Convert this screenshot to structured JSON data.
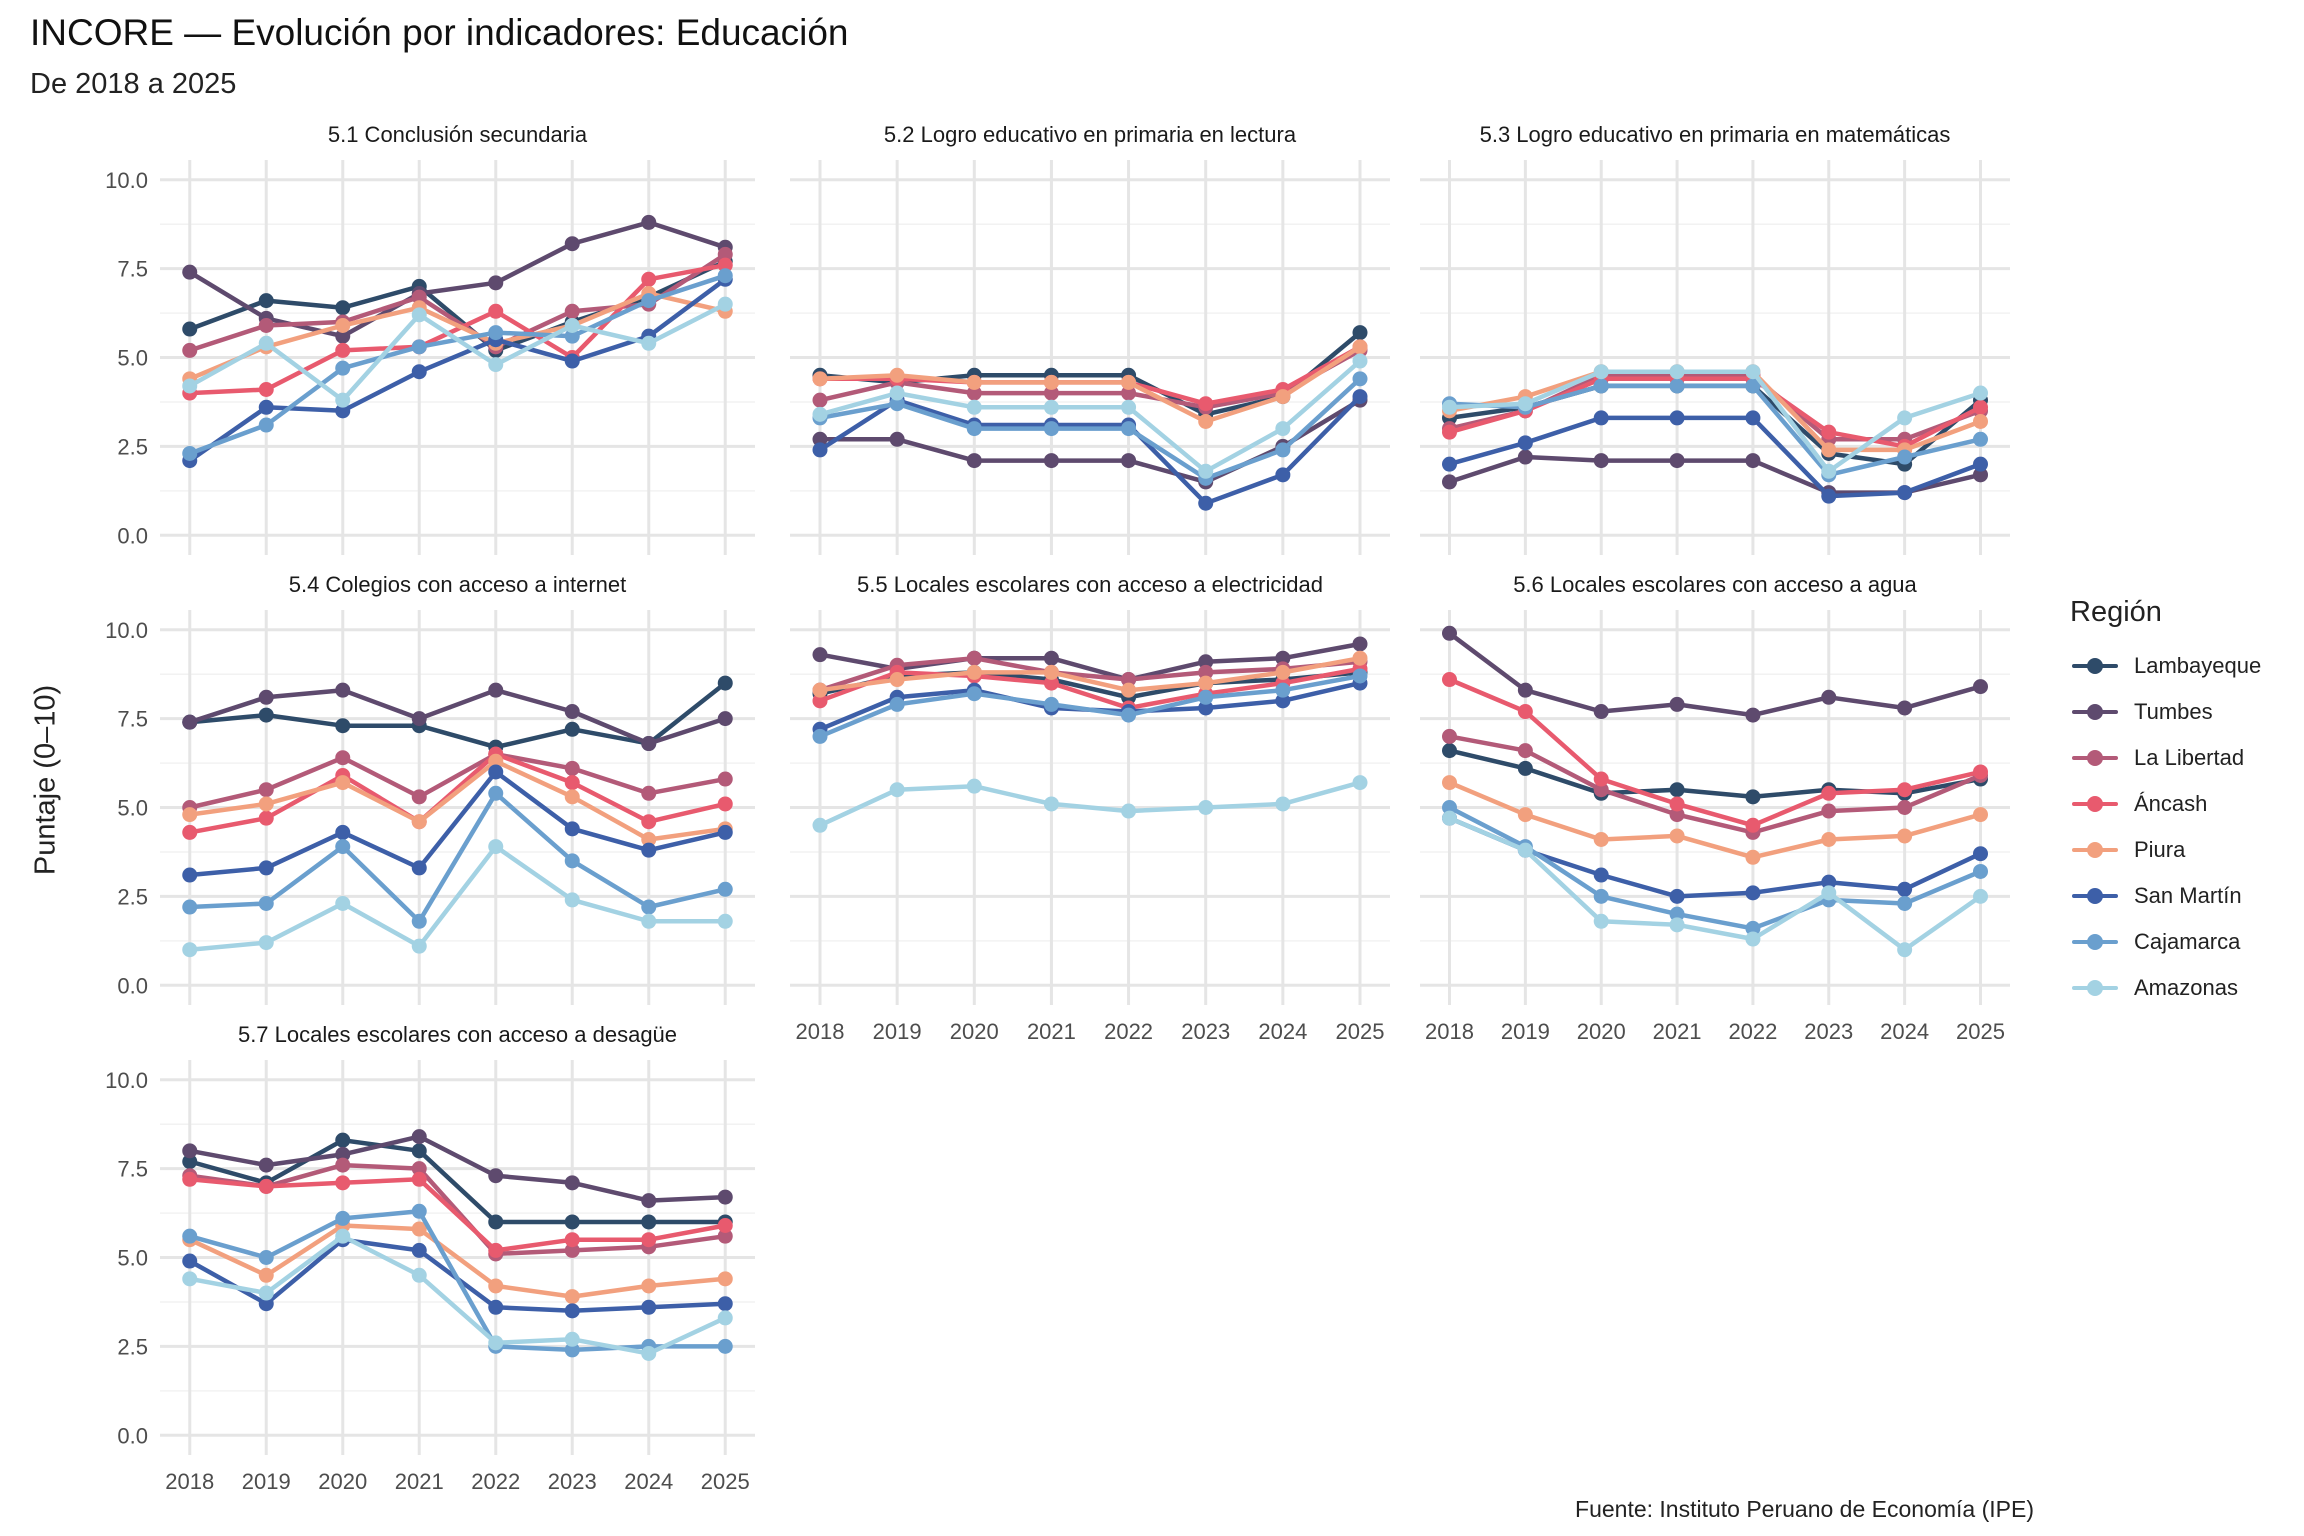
{
  "title": "INCORE — Evolución por indicadores: Educación",
  "subtitle": "De 2018 a 2025",
  "ylabel": "Puntaje (0–10)",
  "caption": "Fuente: Instituto Peruano de Economía (IPE)",
  "legend_title": "Región",
  "chart_data": {
    "type": "line",
    "layout": "facet-grid 3x3",
    "x": [
      "2018",
      "2019",
      "2020",
      "2021",
      "2022",
      "2023",
      "2024",
      "2025"
    ],
    "ylim": [
      0,
      10
    ],
    "yticks": [
      "0.0",
      "2.5",
      "5.0",
      "7.5",
      "10.0"
    ],
    "grid": true,
    "legend_position": "right",
    "series_meta": [
      {
        "name": "Lambayeque",
        "color": "#2E4B69"
      },
      {
        "name": "Tumbes",
        "color": "#5E4A6E"
      },
      {
        "name": "La Libertad",
        "color": "#B35A78"
      },
      {
        "name": "Áncash",
        "color": "#E85A6E"
      },
      {
        "name": "Piura",
        "color": "#F2A07E"
      },
      {
        "name": "San Martín",
        "color": "#3D5FA8"
      },
      {
        "name": "Cajamarca",
        "color": "#6A9FCE"
      },
      {
        "name": "Amazonas",
        "color": "#A3D2E3"
      }
    ],
    "panels": [
      {
        "title": "5.1 Conclusión secundaria",
        "series": [
          {
            "name": "Lambayeque",
            "values": [
              5.8,
              6.6,
              6.4,
              7.0,
              5.2,
              6.0,
              6.7,
              7.7
            ]
          },
          {
            "name": "Tumbes",
            "values": [
              7.4,
              6.1,
              5.6,
              6.8,
              7.1,
              8.2,
              8.8,
              8.1
            ]
          },
          {
            "name": "La Libertad",
            "values": [
              5.2,
              5.9,
              6.0,
              6.7,
              5.3,
              6.3,
              6.5,
              7.9
            ]
          },
          {
            "name": "Áncash",
            "values": [
              4.0,
              4.1,
              5.2,
              5.3,
              6.3,
              5.0,
              7.2,
              7.6
            ]
          },
          {
            "name": "Piura",
            "values": [
              4.4,
              5.3,
              5.9,
              6.4,
              5.4,
              5.9,
              6.8,
              6.3
            ]
          },
          {
            "name": "San Martín",
            "values": [
              2.1,
              3.6,
              3.5,
              4.6,
              5.5,
              4.9,
              5.6,
              7.2
            ]
          },
          {
            "name": "Cajamarca",
            "values": [
              2.3,
              3.1,
              4.7,
              5.3,
              5.7,
              5.6,
              6.6,
              7.3
            ]
          },
          {
            "name": "Amazonas",
            "values": [
              4.2,
              5.4,
              3.8,
              6.2,
              4.8,
              5.9,
              5.4,
              6.5
            ]
          }
        ]
      },
      {
        "title": "5.2 Logro educativo en primaria en lectura",
        "series": [
          {
            "name": "Lambayeque",
            "values": [
              4.5,
              4.3,
              4.5,
              4.5,
              4.5,
              3.4,
              3.9,
              5.7
            ]
          },
          {
            "name": "Tumbes",
            "values": [
              2.7,
              2.7,
              2.1,
              2.1,
              2.1,
              1.5,
              2.5,
              3.8
            ]
          },
          {
            "name": "La Libertad",
            "values": [
              3.8,
              4.3,
              4.0,
              4.0,
              4.0,
              3.6,
              4.0,
              5.2
            ]
          },
          {
            "name": "Áncash",
            "values": [
              4.4,
              4.4,
              4.3,
              4.3,
              4.3,
              3.7,
              4.1,
              5.3
            ]
          },
          {
            "name": "Piura",
            "values": [
              4.4,
              4.5,
              4.3,
              4.3,
              4.3,
              3.2,
              3.9,
              5.3
            ]
          },
          {
            "name": "San Martín",
            "values": [
              2.4,
              3.8,
              3.1,
              3.1,
              3.1,
              0.9,
              1.7,
              3.9
            ]
          },
          {
            "name": "Cajamarca",
            "values": [
              3.3,
              3.7,
              3.0,
              3.0,
              3.0,
              1.6,
              2.4,
              4.4
            ]
          },
          {
            "name": "Amazonas",
            "values": [
              3.4,
              4.0,
              3.6,
              3.6,
              3.6,
              1.8,
              3.0,
              4.9
            ]
          }
        ]
      },
      {
        "title": "5.3 Logro educativo en primaria en matemáticas",
        "series": [
          {
            "name": "Lambayeque",
            "values": [
              3.3,
              3.6,
              4.2,
              4.2,
              4.2,
              2.3,
              2.0,
              3.8
            ]
          },
          {
            "name": "Tumbes",
            "values": [
              1.5,
              2.2,
              2.1,
              2.1,
              2.1,
              1.2,
              1.2,
              1.7
            ]
          },
          {
            "name": "La Libertad",
            "values": [
              3.0,
              3.5,
              4.5,
              4.5,
              4.5,
              2.7,
              2.7,
              3.5
            ]
          },
          {
            "name": "Áncash",
            "values": [
              2.9,
              3.5,
              4.4,
              4.4,
              4.4,
              2.9,
              2.5,
              3.6
            ]
          },
          {
            "name": "Piura",
            "values": [
              3.5,
              3.9,
              4.6,
              4.6,
              4.6,
              2.4,
              2.4,
              3.2
            ]
          },
          {
            "name": "San Martín",
            "values": [
              2.0,
              2.6,
              3.3,
              3.3,
              3.3,
              1.1,
              1.2,
              2.0
            ]
          },
          {
            "name": "Cajamarca",
            "values": [
              3.7,
              3.6,
              4.2,
              4.2,
              4.2,
              1.7,
              2.2,
              2.7
            ]
          },
          {
            "name": "Amazonas",
            "values": [
              3.6,
              3.7,
              4.6,
              4.6,
              4.6,
              1.8,
              3.3,
              4.0
            ]
          }
        ]
      },
      {
        "title": "5.4 Colegios con acceso a internet",
        "series": [
          {
            "name": "Lambayeque",
            "values": [
              7.4,
              7.6,
              7.3,
              7.3,
              6.7,
              7.2,
              6.8,
              8.5
            ]
          },
          {
            "name": "Tumbes",
            "values": [
              7.4,
              8.1,
              8.3,
              7.5,
              8.3,
              7.7,
              6.8,
              7.5
            ]
          },
          {
            "name": "La Libertad",
            "values": [
              5.0,
              5.5,
              6.4,
              5.3,
              6.5,
              6.1,
              5.4,
              5.8
            ]
          },
          {
            "name": "Áncash",
            "values": [
              4.3,
              4.7,
              5.9,
              4.6,
              6.5,
              5.7,
              4.6,
              5.1
            ]
          },
          {
            "name": "Piura",
            "values": [
              4.8,
              5.1,
              5.7,
              4.6,
              6.3,
              5.3,
              4.1,
              4.4
            ]
          },
          {
            "name": "San Martín",
            "values": [
              3.1,
              3.3,
              4.3,
              3.3,
              6.0,
              4.4,
              3.8,
              4.3
            ]
          },
          {
            "name": "Cajamarca",
            "values": [
              2.2,
              2.3,
              3.9,
              1.8,
              5.4,
              3.5,
              2.2,
              2.7
            ]
          },
          {
            "name": "Amazonas",
            "values": [
              1.0,
              1.2,
              2.3,
              1.1,
              3.9,
              2.4,
              1.8,
              1.8
            ]
          }
        ]
      },
      {
        "title": "5.5 Locales escolares con acceso a electricidad",
        "series": [
          {
            "name": "Lambayeque",
            "values": [
              8.2,
              8.7,
              8.8,
              8.6,
              8.1,
              8.5,
              8.6,
              8.8
            ]
          },
          {
            "name": "Tumbes",
            "values": [
              9.3,
              8.9,
              9.2,
              9.2,
              8.6,
              9.1,
              9.2,
              9.6
            ]
          },
          {
            "name": "La Libertad",
            "values": [
              8.3,
              9.0,
              9.2,
              8.8,
              8.6,
              8.8,
              8.9,
              9.1
            ]
          },
          {
            "name": "Áncash",
            "values": [
              8.0,
              8.8,
              8.7,
              8.5,
              7.8,
              8.2,
              8.5,
              8.9
            ]
          },
          {
            "name": "Piura",
            "values": [
              8.3,
              8.6,
              8.8,
              8.8,
              8.3,
              8.5,
              8.8,
              9.2
            ]
          },
          {
            "name": "San Martín",
            "values": [
              7.2,
              8.1,
              8.3,
              7.8,
              7.7,
              7.8,
              8.0,
              8.5
            ]
          },
          {
            "name": "Cajamarca",
            "values": [
              7.0,
              7.9,
              8.2,
              7.9,
              7.6,
              8.1,
              8.3,
              8.7
            ]
          },
          {
            "name": "Amazonas",
            "values": [
              4.5,
              5.5,
              5.6,
              5.1,
              4.9,
              5.0,
              5.1,
              5.7
            ]
          }
        ]
      },
      {
        "title": "5.6 Locales escolares con acceso a agua",
        "series": [
          {
            "name": "Lambayeque",
            "values": [
              6.6,
              6.1,
              5.4,
              5.5,
              5.3,
              5.5,
              5.4,
              5.8
            ]
          },
          {
            "name": "Tumbes",
            "values": [
              9.9,
              8.3,
              7.7,
              7.9,
              7.6,
              8.1,
              7.8,
              8.4
            ]
          },
          {
            "name": "La Libertad",
            "values": [
              7.0,
              6.6,
              5.5,
              4.8,
              4.3,
              4.9,
              5.0,
              5.9
            ]
          },
          {
            "name": "Áncash",
            "values": [
              8.6,
              7.7,
              5.8,
              5.1,
              4.5,
              5.4,
              5.5,
              6.0
            ]
          },
          {
            "name": "Piura",
            "values": [
              5.7,
              4.8,
              4.1,
              4.2,
              3.6,
              4.1,
              4.2,
              4.8
            ]
          },
          {
            "name": "San Martín",
            "values": [
              4.7,
              3.8,
              3.1,
              2.5,
              2.6,
              2.9,
              2.7,
              3.7
            ]
          },
          {
            "name": "Cajamarca",
            "values": [
              5.0,
              3.9,
              2.5,
              2.0,
              1.6,
              2.4,
              2.3,
              3.2
            ]
          },
          {
            "name": "Amazonas",
            "values": [
              4.7,
              3.8,
              1.8,
              1.7,
              1.3,
              2.6,
              1.0,
              2.5
            ]
          }
        ]
      },
      {
        "title": "5.7 Locales escolares con acceso a desagüe",
        "series": [
          {
            "name": "Lambayeque",
            "values": [
              7.7,
              7.1,
              8.3,
              8.0,
              6.0,
              6.0,
              6.0,
              6.0
            ]
          },
          {
            "name": "Tumbes",
            "values": [
              8.0,
              7.6,
              7.9,
              8.4,
              7.3,
              7.1,
              6.6,
              6.7
            ]
          },
          {
            "name": "La Libertad",
            "values": [
              7.3,
              7.0,
              7.6,
              7.5,
              5.1,
              5.2,
              5.3,
              5.6
            ]
          },
          {
            "name": "Áncash",
            "values": [
              7.2,
              7.0,
              7.1,
              7.2,
              5.2,
              5.5,
              5.5,
              5.9
            ]
          },
          {
            "name": "Piura",
            "values": [
              5.5,
              4.5,
              5.9,
              5.8,
              4.2,
              3.9,
              4.2,
              4.4
            ]
          },
          {
            "name": "San Martín",
            "values": [
              4.9,
              3.7,
              5.5,
              5.2,
              3.6,
              3.5,
              3.6,
              3.7
            ]
          },
          {
            "name": "Cajamarca",
            "values": [
              5.6,
              5.0,
              6.1,
              6.3,
              2.5,
              2.4,
              2.5,
              2.5
            ]
          },
          {
            "name": "Amazonas",
            "values": [
              4.4,
              4.0,
              5.6,
              4.5,
              2.6,
              2.7,
              2.3,
              3.3
            ]
          }
        ]
      }
    ]
  }
}
